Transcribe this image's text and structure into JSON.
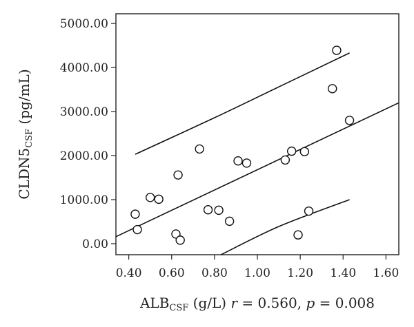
{
  "chart_data": {
    "type": "scatter",
    "xlabel": {
      "main": "ALB",
      "sub": "CSF",
      "unit": " (g/L) ",
      "stat_r_symbol": "r",
      "stat_r_value": " = 0.560, ",
      "stat_p_symbol": "p",
      "stat_p_value": " = 0.008"
    },
    "ylabel": {
      "main": "CLDN5",
      "sub": "CSF",
      "unit": " (pg/mL)"
    },
    "xlim": [
      0.34,
      1.66
    ],
    "ylim": [
      -250,
      5220
    ],
    "x_ticks": [
      0.4,
      0.6,
      0.8,
      1.0,
      1.2,
      1.4,
      1.6
    ],
    "x_tick_labels": [
      "0.40",
      "0.60",
      "0.80",
      "1.00",
      "1.20",
      "1.40",
      "1.60"
    ],
    "y_ticks": [
      0,
      1000,
      2000,
      3000,
      4000,
      5000
    ],
    "y_tick_labels": [
      "0.00",
      "1000.00",
      "2000.00",
      "3000.00",
      "4000.00",
      "5000.00"
    ],
    "points": [
      {
        "x": 0.43,
        "y": 670
      },
      {
        "x": 0.44,
        "y": 320
      },
      {
        "x": 0.5,
        "y": 1050
      },
      {
        "x": 0.54,
        "y": 1010
      },
      {
        "x": 0.62,
        "y": 220
      },
      {
        "x": 0.63,
        "y": 1560
      },
      {
        "x": 0.64,
        "y": 80
      },
      {
        "x": 0.73,
        "y": 2150
      },
      {
        "x": 0.77,
        "y": 770
      },
      {
        "x": 0.82,
        "y": 760
      },
      {
        "x": 0.87,
        "y": 510
      },
      {
        "x": 0.91,
        "y": 1880
      },
      {
        "x": 0.95,
        "y": 1830
      },
      {
        "x": 1.13,
        "y": 1900
      },
      {
        "x": 1.16,
        "y": 2100
      },
      {
        "x": 1.19,
        "y": 200
      },
      {
        "x": 1.22,
        "y": 2090
      },
      {
        "x": 1.24,
        "y": 740
      },
      {
        "x": 1.35,
        "y": 3520
      },
      {
        "x": 1.37,
        "y": 4390
      },
      {
        "x": 1.43,
        "y": 2800
      }
    ],
    "fit_line": [
      {
        "x": 0.34,
        "y": 160
      },
      {
        "x": 1.66,
        "y": 3200
      }
    ],
    "upper_band": [
      {
        "x": 0.43,
        "y": 2030
      },
      {
        "x": 0.8,
        "y": 2860
      },
      {
        "x": 1.1,
        "y": 3560
      },
      {
        "x": 1.43,
        "y": 4330
      }
    ],
    "lower_band": [
      {
        "x": 0.83,
        "y": -250
      },
      {
        "x": 1.1,
        "y": 390
      },
      {
        "x": 1.43,
        "y": 1000
      }
    ]
  }
}
